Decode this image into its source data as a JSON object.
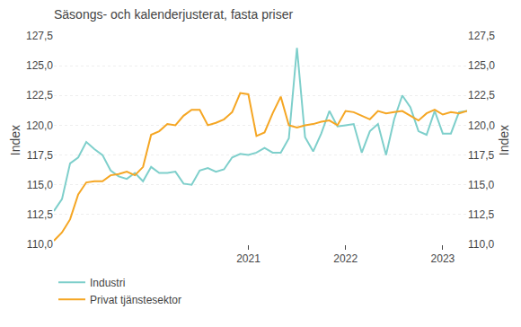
{
  "chart_data": {
    "type": "line",
    "title": "Säsongs- och kalenderjusterat, fasta priser",
    "ylabel": "Index",
    "y2label": "Index",
    "categories": [
      null,
      null,
      null,
      null,
      null,
      null,
      null,
      null,
      null,
      null,
      null,
      null,
      null,
      null,
      null,
      null,
      null,
      null,
      null,
      null,
      null,
      null,
      null,
      null,
      "2021",
      null,
      null,
      null,
      null,
      null,
      null,
      null,
      null,
      null,
      null,
      null,
      "2022",
      null,
      null,
      null,
      null,
      null,
      null,
      null,
      null,
      null,
      null,
      null,
      "2023",
      null,
      null,
      null
    ],
    "series": [
      {
        "name": "Industri",
        "color": "#7ecfcb",
        "values": [
          112.8,
          113.8,
          116.8,
          117.3,
          118.6,
          118.0,
          117.5,
          116.2,
          115.7,
          115.5,
          116.0,
          115.3,
          116.5,
          116.0,
          116.0,
          116.1,
          115.1,
          115.0,
          116.2,
          116.4,
          116.1,
          116.3,
          117.3,
          117.6,
          117.5,
          117.7,
          118.1,
          117.7,
          117.7,
          118.9,
          126.5,
          119.0,
          117.8,
          119.3,
          121.2,
          119.9,
          120.0,
          120.1,
          117.7,
          119.5,
          120.1,
          117.5,
          120.5,
          122.5,
          121.5,
          119.5,
          119.2,
          121.2,
          119.3,
          119.3,
          121.1,
          121.2
        ]
      },
      {
        "name": "Privat tjänstesektor",
        "color": "#f5a623",
        "values": [
          110.3,
          111.0,
          112.1,
          114.2,
          115.2,
          115.3,
          115.3,
          115.8,
          115.9,
          116.1,
          115.8,
          116.5,
          119.2,
          119.5,
          120.1,
          120.0,
          120.8,
          121.3,
          121.3,
          120.0,
          120.2,
          120.5,
          121.1,
          122.7,
          122.6,
          119.1,
          119.4,
          121.0,
          122.4,
          120.0,
          119.8,
          120.0,
          120.1,
          120.3,
          120.4,
          120.0,
          121.2,
          121.1,
          120.8,
          120.5,
          121.2,
          121.0,
          121.1,
          121.2,
          120.8,
          120.4,
          121.0,
          121.3,
          120.9,
          121.1,
          121.0,
          121.2
        ]
      }
    ],
    "ylim": [
      110.0,
      127.5
    ],
    "yticks": [
      {
        "value": 110.0,
        "label": "110,0"
      },
      {
        "value": 112.5,
        "label": "112,5"
      },
      {
        "value": 115.0,
        "label": "115,0"
      },
      {
        "value": 117.5,
        "label": "117,5"
      },
      {
        "value": 120.0,
        "label": "120,0"
      },
      {
        "value": 122.5,
        "label": "122,5"
      },
      {
        "value": 125.0,
        "label": "125,0"
      },
      {
        "value": 127.5,
        "label": "127,5"
      }
    ],
    "y2lim": [
      110.0,
      127.5
    ],
    "y2ticks": [
      {
        "value": 110.0,
        "label": "110,0"
      },
      {
        "value": 112.5,
        "label": "112,5"
      },
      {
        "value": 115.0,
        "label": "115,0"
      },
      {
        "value": 117.5,
        "label": "117,5"
      },
      {
        "value": 120.0,
        "label": "120,0"
      },
      {
        "value": 122.5,
        "label": "122,5"
      },
      {
        "value": 125.0,
        "label": "125,0"
      },
      {
        "value": 127.5,
        "label": "127,5"
      }
    ],
    "grid": true,
    "legend": "lower left"
  }
}
